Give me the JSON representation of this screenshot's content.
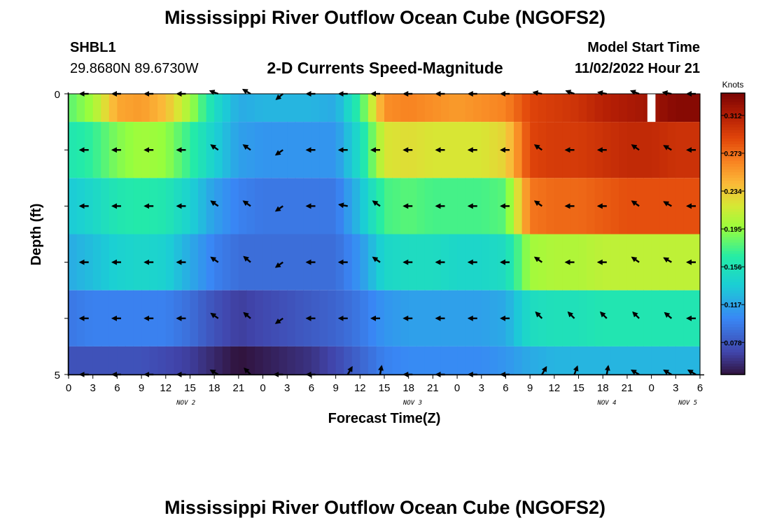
{
  "header": {
    "title": "Mississippi River Outflow Ocean Cube (NGOFS2)",
    "station_id": "SHBL1",
    "station_coords": "29.8680N  89.6730W",
    "subtitle": "2-D Currents Speed-Magnitude",
    "model_start_label": "Model Start Time",
    "model_start_value": "11/02/2022 Hour 21"
  },
  "footer": {
    "title": "Mississippi River Outflow Ocean Cube (NGOFS2)"
  },
  "chart_data": {
    "type": "heatmap",
    "xlabel": "Forecast Time(Z)",
    "ylabel": "Depth (ft)",
    "colorbar_label": "Knots",
    "x_tick_labels": [
      "0",
      "3",
      "6",
      "9",
      "12",
      "15",
      "18",
      "21",
      "0",
      "3",
      "6",
      "9",
      "12",
      "15",
      "18",
      "21",
      "0",
      "3",
      "6",
      "9",
      "12",
      "15",
      "18",
      "21",
      "0",
      "3",
      "6"
    ],
    "date_labels": [
      "NOV 2",
      "NOV 3",
      "NOV 4",
      "NOV 5"
    ],
    "y_tick_labels": [
      "0",
      "5"
    ],
    "y_range": [
      0,
      5
    ],
    "colorbar_ticks": [
      0.078,
      0.117,
      0.156,
      0.195,
      0.234,
      0.273,
      0.312
    ],
    "colorbar_ticks_text": [
      "0.078",
      "0.117",
      "0.156",
      "0.195",
      "0.234",
      "0.273",
      "0.312"
    ],
    "color_range": [
      0.045,
      0.335
    ],
    "time_start_hour": 0,
    "time_end_hour": 78,
    "anchor_hours": [
      0,
      3,
      6,
      9,
      12,
      15,
      18,
      21,
      24,
      27,
      30,
      33,
      36,
      39,
      42,
      45,
      48,
      51,
      54,
      57,
      60,
      63,
      66,
      69,
      72,
      75,
      78
    ],
    "layers": [
      {
        "depth": 0.0,
        "speed": [
          0.18,
          0.2,
          0.25,
          0.255,
          0.24,
          0.2,
          0.15,
          0.12,
          0.125,
          0.125,
          0.125,
          0.12,
          0.17,
          0.26,
          0.265,
          0.26,
          0.255,
          0.26,
          0.265,
          0.29,
          0.295,
          0.3,
          0.31,
          0.315,
          0.32,
          0.33,
          0.33
        ]
      },
      {
        "depth": 1.0,
        "speed": [
          0.16,
          0.17,
          0.19,
          0.2,
          0.195,
          0.17,
          0.14,
          0.115,
          0.11,
          0.11,
          0.11,
          0.11,
          0.15,
          0.22,
          0.225,
          0.22,
          0.22,
          0.22,
          0.23,
          0.29,
          0.295,
          0.295,
          0.3,
          0.305,
          0.305,
          0.3,
          0.3
        ]
      },
      {
        "depth": 2.0,
        "speed": [
          0.135,
          0.145,
          0.16,
          0.165,
          0.16,
          0.14,
          0.115,
          0.1,
          0.095,
          0.095,
          0.095,
          0.095,
          0.13,
          0.175,
          0.18,
          0.175,
          0.175,
          0.175,
          0.18,
          0.27,
          0.275,
          0.275,
          0.28,
          0.285,
          0.285,
          0.285,
          0.285
        ]
      },
      {
        "depth": 3.0,
        "speed": [
          0.12,
          0.13,
          0.14,
          0.145,
          0.14,
          0.12,
          0.1,
          0.09,
          0.09,
          0.09,
          0.09,
          0.09,
          0.11,
          0.145,
          0.15,
          0.15,
          0.145,
          0.145,
          0.15,
          0.2,
          0.205,
          0.205,
          0.21,
          0.21,
          0.21,
          0.21,
          0.21
        ]
      },
      {
        "depth": 4.0,
        "speed": [
          0.095,
          0.1,
          0.1,
          0.1,
          0.1,
          0.09,
          0.075,
          0.065,
          0.07,
          0.075,
          0.08,
          0.085,
          0.095,
          0.11,
          0.115,
          0.115,
          0.115,
          0.115,
          0.12,
          0.15,
          0.155,
          0.155,
          0.16,
          0.16,
          0.16,
          0.16,
          0.16
        ]
      },
      {
        "depth": 5.0,
        "speed": [
          0.075,
          0.075,
          0.075,
          0.075,
          0.07,
          0.065,
          0.055,
          0.045,
          0.05,
          0.055,
          0.06,
          0.07,
          0.085,
          0.1,
          0.105,
          0.105,
          0.105,
          0.105,
          0.11,
          0.12,
          0.125,
          0.125,
          0.125,
          0.125,
          0.125,
          0.125,
          0.125
        ]
      }
    ],
    "missing_data": [
      {
        "depth": 0.0,
        "hours": [
          71.5,
          72.5
        ]
      }
    ],
    "vector_hours": [
      3,
      7,
      11,
      15,
      19,
      23,
      27,
      31,
      35,
      39,
      43,
      47,
      51,
      55,
      59,
      63,
      67,
      71,
      75,
      78
    ],
    "vector_directions_deg": [
      [
        180,
        180,
        180,
        180,
        160,
        150,
        220,
        180,
        180,
        180,
        180,
        180,
        180,
        180,
        170,
        160,
        170,
        160,
        170,
        180
      ],
      [
        180,
        180,
        180,
        180,
        145,
        145,
        215,
        180,
        180,
        180,
        180,
        180,
        180,
        180,
        145,
        180,
        180,
        145,
        150,
        180
      ],
      [
        180,
        180,
        180,
        180,
        145,
        145,
        215,
        180,
        170,
        145,
        180,
        180,
        180,
        180,
        145,
        180,
        180,
        145,
        150,
        180
      ],
      [
        180,
        180,
        180,
        180,
        145,
        140,
        215,
        180,
        180,
        145,
        180,
        180,
        180,
        180,
        145,
        180,
        180,
        145,
        150,
        180
      ],
      [
        180,
        180,
        180,
        180,
        145,
        140,
        215,
        180,
        180,
        180,
        180,
        180,
        180,
        180,
        135,
        135,
        135,
        135,
        140,
        180
      ],
      [
        180,
        180,
        180,
        180,
        150,
        135,
        180,
        180,
        60,
        80,
        180,
        180,
        180,
        180,
        60,
        70,
        80,
        150,
        150,
        150
      ]
    ]
  }
}
